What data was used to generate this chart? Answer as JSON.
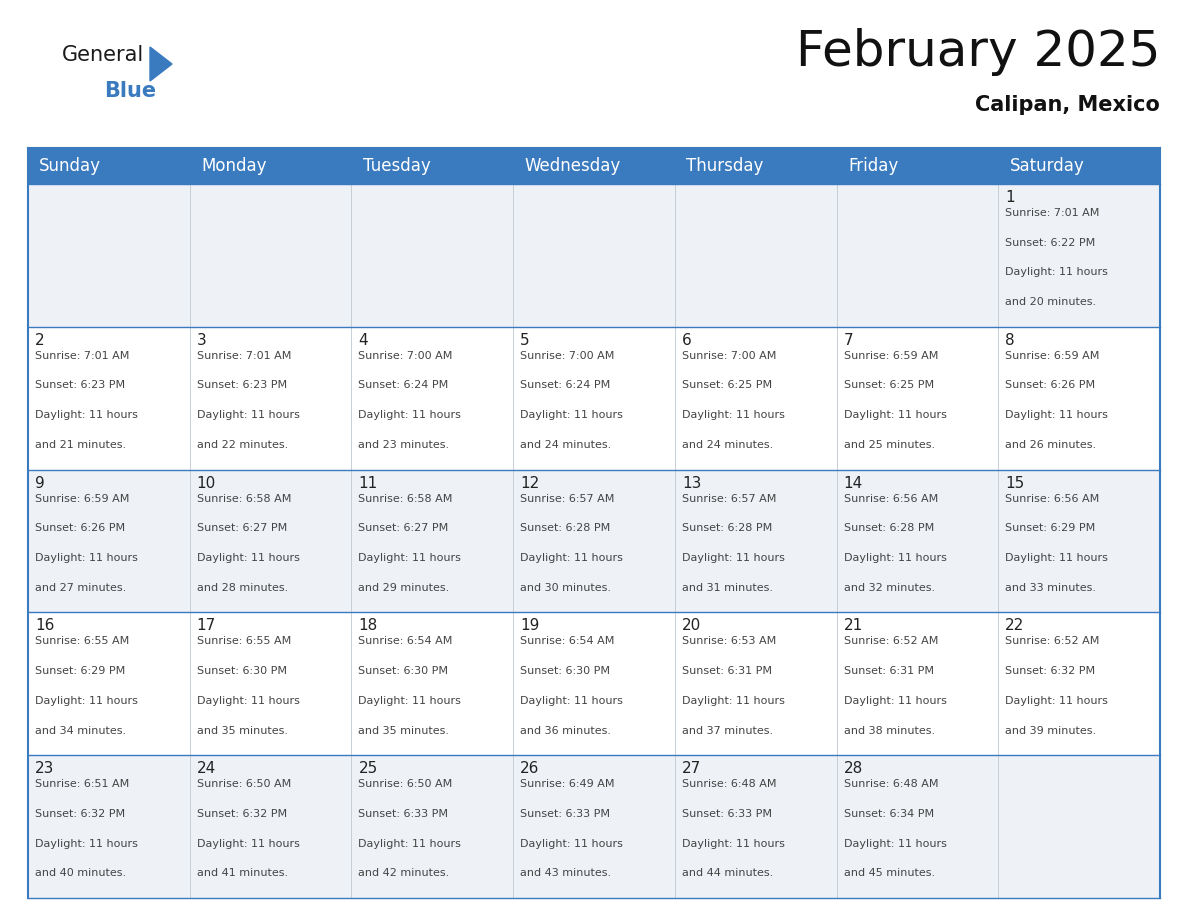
{
  "title": "February 2025",
  "subtitle": "Calipan, Mexico",
  "header_bg_color": "#3a7abf",
  "header_text_color": "#ffffff",
  "days_of_week": [
    "Sunday",
    "Monday",
    "Tuesday",
    "Wednesday",
    "Thursday",
    "Friday",
    "Saturday"
  ],
  "border_color": "#3a7abf",
  "row_sep_color": "#3a7abf",
  "col_sep_color": "#c0c8d0",
  "day_number_color": "#222222",
  "cell_text_color": "#444444",
  "cell_bg_even": "#eef2f7",
  "cell_bg_odd": "#ffffff",
  "calendar_data": [
    {
      "day": 1,
      "col": 6,
      "row": 0,
      "sunrise": "7:01 AM",
      "sunset": "6:22 PM",
      "daylight_hours": 11,
      "daylight_minutes": 20
    },
    {
      "day": 2,
      "col": 0,
      "row": 1,
      "sunrise": "7:01 AM",
      "sunset": "6:23 PM",
      "daylight_hours": 11,
      "daylight_minutes": 21
    },
    {
      "day": 3,
      "col": 1,
      "row": 1,
      "sunrise": "7:01 AM",
      "sunset": "6:23 PM",
      "daylight_hours": 11,
      "daylight_minutes": 22
    },
    {
      "day": 4,
      "col": 2,
      "row": 1,
      "sunrise": "7:00 AM",
      "sunset": "6:24 PM",
      "daylight_hours": 11,
      "daylight_minutes": 23
    },
    {
      "day": 5,
      "col": 3,
      "row": 1,
      "sunrise": "7:00 AM",
      "sunset": "6:24 PM",
      "daylight_hours": 11,
      "daylight_minutes": 24
    },
    {
      "day": 6,
      "col": 4,
      "row": 1,
      "sunrise": "7:00 AM",
      "sunset": "6:25 PM",
      "daylight_hours": 11,
      "daylight_minutes": 24
    },
    {
      "day": 7,
      "col": 5,
      "row": 1,
      "sunrise": "6:59 AM",
      "sunset": "6:25 PM",
      "daylight_hours": 11,
      "daylight_minutes": 25
    },
    {
      "day": 8,
      "col": 6,
      "row": 1,
      "sunrise": "6:59 AM",
      "sunset": "6:26 PM",
      "daylight_hours": 11,
      "daylight_minutes": 26
    },
    {
      "day": 9,
      "col": 0,
      "row": 2,
      "sunrise": "6:59 AM",
      "sunset": "6:26 PM",
      "daylight_hours": 11,
      "daylight_minutes": 27
    },
    {
      "day": 10,
      "col": 1,
      "row": 2,
      "sunrise": "6:58 AM",
      "sunset": "6:27 PM",
      "daylight_hours": 11,
      "daylight_minutes": 28
    },
    {
      "day": 11,
      "col": 2,
      "row": 2,
      "sunrise": "6:58 AM",
      "sunset": "6:27 PM",
      "daylight_hours": 11,
      "daylight_minutes": 29
    },
    {
      "day": 12,
      "col": 3,
      "row": 2,
      "sunrise": "6:57 AM",
      "sunset": "6:28 PM",
      "daylight_hours": 11,
      "daylight_minutes": 30
    },
    {
      "day": 13,
      "col": 4,
      "row": 2,
      "sunrise": "6:57 AM",
      "sunset": "6:28 PM",
      "daylight_hours": 11,
      "daylight_minutes": 31
    },
    {
      "day": 14,
      "col": 5,
      "row": 2,
      "sunrise": "6:56 AM",
      "sunset": "6:28 PM",
      "daylight_hours": 11,
      "daylight_minutes": 32
    },
    {
      "day": 15,
      "col": 6,
      "row": 2,
      "sunrise": "6:56 AM",
      "sunset": "6:29 PM",
      "daylight_hours": 11,
      "daylight_minutes": 33
    },
    {
      "day": 16,
      "col": 0,
      "row": 3,
      "sunrise": "6:55 AM",
      "sunset": "6:29 PM",
      "daylight_hours": 11,
      "daylight_minutes": 34
    },
    {
      "day": 17,
      "col": 1,
      "row": 3,
      "sunrise": "6:55 AM",
      "sunset": "6:30 PM",
      "daylight_hours": 11,
      "daylight_minutes": 35
    },
    {
      "day": 18,
      "col": 2,
      "row": 3,
      "sunrise": "6:54 AM",
      "sunset": "6:30 PM",
      "daylight_hours": 11,
      "daylight_minutes": 35
    },
    {
      "day": 19,
      "col": 3,
      "row": 3,
      "sunrise": "6:54 AM",
      "sunset": "6:30 PM",
      "daylight_hours": 11,
      "daylight_minutes": 36
    },
    {
      "day": 20,
      "col": 4,
      "row": 3,
      "sunrise": "6:53 AM",
      "sunset": "6:31 PM",
      "daylight_hours": 11,
      "daylight_minutes": 37
    },
    {
      "day": 21,
      "col": 5,
      "row": 3,
      "sunrise": "6:52 AM",
      "sunset": "6:31 PM",
      "daylight_hours": 11,
      "daylight_minutes": 38
    },
    {
      "day": 22,
      "col": 6,
      "row": 3,
      "sunrise": "6:52 AM",
      "sunset": "6:32 PM",
      "daylight_hours": 11,
      "daylight_minutes": 39
    },
    {
      "day": 23,
      "col": 0,
      "row": 4,
      "sunrise": "6:51 AM",
      "sunset": "6:32 PM",
      "daylight_hours": 11,
      "daylight_minutes": 40
    },
    {
      "day": 24,
      "col": 1,
      "row": 4,
      "sunrise": "6:50 AM",
      "sunset": "6:32 PM",
      "daylight_hours": 11,
      "daylight_minutes": 41
    },
    {
      "day": 25,
      "col": 2,
      "row": 4,
      "sunrise": "6:50 AM",
      "sunset": "6:33 PM",
      "daylight_hours": 11,
      "daylight_minutes": 42
    },
    {
      "day": 26,
      "col": 3,
      "row": 4,
      "sunrise": "6:49 AM",
      "sunset": "6:33 PM",
      "daylight_hours": 11,
      "daylight_minutes": 43
    },
    {
      "day": 27,
      "col": 4,
      "row": 4,
      "sunrise": "6:48 AM",
      "sunset": "6:33 PM",
      "daylight_hours": 11,
      "daylight_minutes": 44
    },
    {
      "day": 28,
      "col": 5,
      "row": 4,
      "sunrise": "6:48 AM",
      "sunset": "6:34 PM",
      "daylight_hours": 11,
      "daylight_minutes": 45
    }
  ],
  "logo_text_general": "General",
  "logo_text_blue": "Blue",
  "logo_color_general": "#1a1a1a",
  "logo_color_blue": "#3a7abf",
  "logo_triangle_color": "#3a7abf",
  "title_fontsize": 36,
  "subtitle_fontsize": 15,
  "header_fontsize": 12,
  "day_num_fontsize": 11,
  "cell_text_fontsize": 8
}
